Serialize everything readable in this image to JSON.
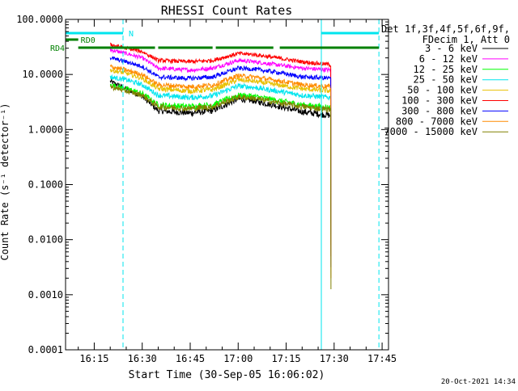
{
  "chart_data": {
    "type": "line",
    "title": "RHESSI Count Rates",
    "xlabel": "Start Time (30-Sep-05 16:06:02)",
    "ylabel": "Count Rate (s⁻¹ detector⁻¹)",
    "y_scale": "log",
    "ylim": [
      0.0001,
      100
    ],
    "x_start": "16:06:02",
    "x_range": [
      "16:06:02",
      "17:47:00"
    ],
    "x_ticks": [
      "16:15",
      "16:30",
      "16:45",
      "17:00",
      "17:15",
      "17:30",
      "17:45"
    ],
    "y_ticks": [
      "0.0001",
      "0.0010",
      "0.0100",
      "0.1000",
      "1.0000",
      "10.0000",
      "100.0000"
    ],
    "legend_position": "outside-right",
    "legend_header": [
      "Det 1f,3f,4f,5f,6f,9f,",
      "FDecim 1, Att 0"
    ],
    "timestamp": "20-Oct-2021 14:34",
    "attenuator_bars": [
      {
        "label": "N",
        "color": "#00e5ee",
        "segments": [
          [
            "16:06:02",
            "16:24:00"
          ],
          [
            "17:26:00",
            "17:44:00"
          ]
        ]
      },
      {
        "label": "RD0",
        "color": "#008000",
        "segments": [
          [
            "16:06:02",
            "16:10:00"
          ]
        ]
      },
      {
        "label": "RD4",
        "color": "#008000",
        "segments": [
          [
            "16:10:00",
            "16:34:00"
          ],
          [
            "16:35:00",
            "16:52:00"
          ],
          [
            "16:53:00",
            "17:11:00"
          ],
          [
            "17:13:00",
            "17:44:00"
          ]
        ]
      }
    ],
    "vlines_solid": [
      "16:06:02",
      "17:26:00"
    ],
    "vlines_dashed": [
      "16:24:00",
      "17:44:00"
    ],
    "series": [
      {
        "name": "3 - 6 keV",
        "color": "#000000",
        "points": [
          [
            "16:20",
            7.5
          ],
          [
            "16:25",
            5.5
          ],
          [
            "16:30",
            4.0
          ],
          [
            "16:35",
            2.2
          ],
          [
            "16:45",
            2.0
          ],
          [
            "16:52",
            2.2
          ],
          [
            "17:00",
            3.6
          ],
          [
            "17:05",
            3.3
          ],
          [
            "17:12",
            2.7
          ],
          [
            "17:20",
            2.1
          ],
          [
            "17:29",
            1.8
          ]
        ]
      },
      {
        "name": "6 - 12 keV",
        "color": "#ff00ff",
        "points": [
          [
            "16:20",
            28
          ],
          [
            "16:25",
            24
          ],
          [
            "16:30",
            20
          ],
          [
            "16:35",
            13
          ],
          [
            "16:45",
            12
          ],
          [
            "16:52",
            13
          ],
          [
            "17:00",
            18
          ],
          [
            "17:05",
            17
          ],
          [
            "17:12",
            15
          ],
          [
            "17:20",
            13
          ],
          [
            "17:29",
            12
          ]
        ]
      },
      {
        "name": "12 - 25 keV",
        "color": "#00ff00",
        "points": [
          [
            "16:20",
            6.5
          ],
          [
            "16:25",
            5.5
          ],
          [
            "16:30",
            4.5
          ],
          [
            "16:35",
            2.8
          ],
          [
            "16:45",
            2.6
          ],
          [
            "16:52",
            2.8
          ],
          [
            "17:00",
            4.2
          ],
          [
            "17:05",
            4.0
          ],
          [
            "17:12",
            3.4
          ],
          [
            "17:20",
            2.8
          ],
          [
            "17:29",
            2.5
          ]
        ]
      },
      {
        "name": "25 - 50 keV",
        "color": "#00e5ee",
        "points": [
          [
            "16:20",
            9
          ],
          [
            "16:25",
            8
          ],
          [
            "16:30",
            6.5
          ],
          [
            "16:35",
            4.2
          ],
          [
            "16:45",
            3.8
          ],
          [
            "16:52",
            4.1
          ],
          [
            "17:00",
            6.2
          ],
          [
            "17:05",
            5.8
          ],
          [
            "17:12",
            5.0
          ],
          [
            "17:20",
            4.2
          ],
          [
            "17:29",
            3.8
          ]
        ]
      },
      {
        "name": "50 - 100 keV",
        "color": "#e8c000",
        "points": [
          [
            "16:20",
            12
          ],
          [
            "16:25",
            10.5
          ],
          [
            "16:30",
            8.5
          ],
          [
            "16:35",
            5.5
          ],
          [
            "16:45",
            5.0
          ],
          [
            "16:52",
            5.3
          ],
          [
            "17:00",
            8.0
          ],
          [
            "17:05",
            7.5
          ],
          [
            "17:12",
            6.5
          ],
          [
            "17:20",
            5.5
          ],
          [
            "17:29",
            5.0
          ]
        ]
      },
      {
        "name": "100 - 300 keV",
        "color": "#ff0000",
        "points": [
          [
            "16:20",
            35
          ],
          [
            "16:25",
            30
          ],
          [
            "16:30",
            26
          ],
          [
            "16:35",
            18
          ],
          [
            "16:45",
            17
          ],
          [
            "16:52",
            18
          ],
          [
            "17:00",
            24
          ],
          [
            "17:05",
            23
          ],
          [
            "17:12",
            20
          ],
          [
            "17:20",
            17
          ],
          [
            "17:29",
            15
          ]
        ]
      },
      {
        "name": "300 - 800 keV",
        "color": "#0000ff",
        "points": [
          [
            "16:20",
            20
          ],
          [
            "16:25",
            17
          ],
          [
            "16:30",
            14
          ],
          [
            "16:35",
            9
          ],
          [
            "16:45",
            8.5
          ],
          [
            "16:52",
            9
          ],
          [
            "17:00",
            13
          ],
          [
            "17:05",
            12.5
          ],
          [
            "17:12",
            11
          ],
          [
            "17:20",
            9
          ],
          [
            "17:29",
            8.5
          ]
        ]
      },
      {
        "name": "800 - 7000 keV",
        "color": "#ff8c00",
        "points": [
          [
            "16:20",
            14
          ],
          [
            "16:25",
            12
          ],
          [
            "16:30",
            10
          ],
          [
            "16:35",
            6.5
          ],
          [
            "16:45",
            6.0
          ],
          [
            "16:52",
            6.4
          ],
          [
            "17:00",
            9.5
          ],
          [
            "17:05",
            9.0
          ],
          [
            "17:12",
            7.8
          ],
          [
            "17:20",
            6.5
          ],
          [
            "17:29",
            6.0
          ]
        ]
      },
      {
        "name": "7000 - 15000 keV",
        "color": "#808000",
        "points": [
          [
            "16:20",
            6.0
          ],
          [
            "16:25",
            5.0
          ],
          [
            "16:30",
            4.2
          ],
          [
            "16:35",
            2.6
          ],
          [
            "16:45",
            2.4
          ],
          [
            "16:52",
            2.6
          ],
          [
            "17:00",
            3.9
          ],
          [
            "17:05",
            3.7
          ],
          [
            "17:12",
            3.1
          ],
          [
            "17:20",
            2.6
          ],
          [
            "17:29",
            2.3
          ]
        ]
      }
    ]
  }
}
